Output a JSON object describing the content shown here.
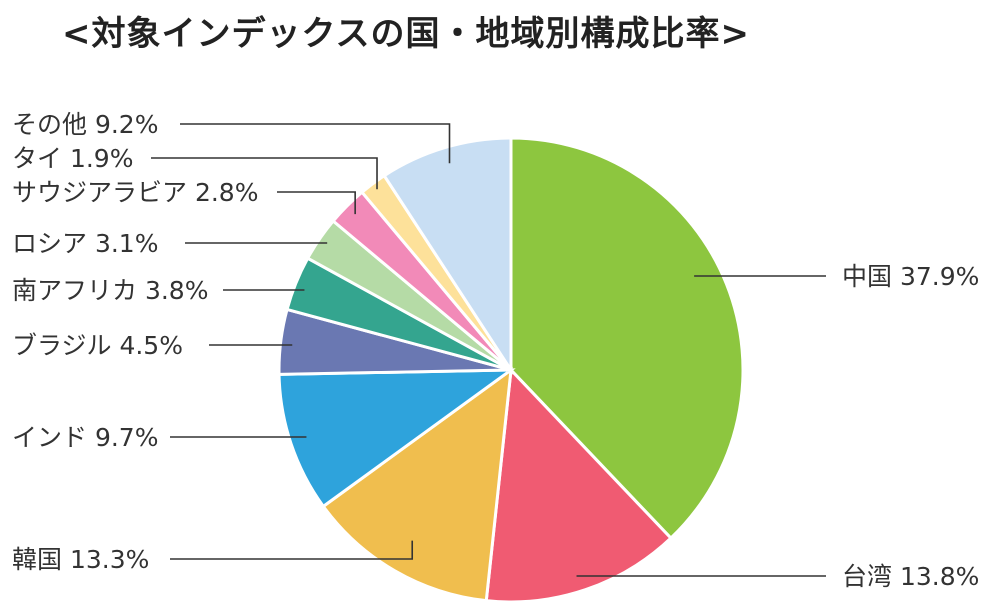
{
  "chart_data": {
    "type": "pie",
    "title": "<対象インデックスの国・地域別構成比率>",
    "start_angle_deg": 0,
    "direction": "clockwise",
    "slices": [
      {
        "label": "中国",
        "value": 37.9,
        "value_label": "37.9%",
        "color": "#8dc63f"
      },
      {
        "label": "台湾",
        "value": 13.8,
        "value_label": "13.8%",
        "color": "#f05b72"
      },
      {
        "label": "韓国",
        "value": 13.3,
        "value_label": "13.3%",
        "color": "#f0be4e"
      },
      {
        "label": "インド",
        "value": 9.7,
        "value_label": "9.7%",
        "color": "#2ea3dc"
      },
      {
        "label": "ブラジル",
        "value": 4.5,
        "value_label": "4.5%",
        "color": "#6a78b2"
      },
      {
        "label": "南アフリカ",
        "value": 3.8,
        "value_label": "3.8%",
        "color": "#34a58f"
      },
      {
        "label": "ロシア",
        "value": 3.1,
        "value_label": "3.1%",
        "color": "#b5dba6"
      },
      {
        "label": "サウジアラビア",
        "value": 2.8,
        "value_label": "2.8%",
        "color": "#f28ab8"
      },
      {
        "label": "タイ",
        "value": 1.9,
        "value_label": "1.9%",
        "color": "#fde19a"
      },
      {
        "label": "その他",
        "value": 9.2,
        "value_label": "9.2%",
        "color": "#c8def3"
      }
    ]
  }
}
